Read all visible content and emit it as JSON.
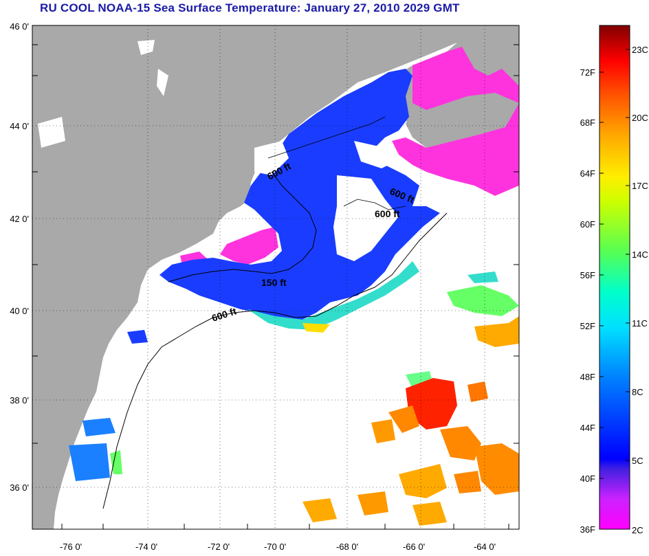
{
  "title": "RU COOL  NOAA-15  Sea Surface Temperature:  January 27, 2010 2029 GMT",
  "lat_labels": [
    "46 0'",
    "44 0'",
    "42 0'",
    "40 0'",
    "38 0'",
    "36 0'"
  ],
  "lon_labels": [
    "-76 0'",
    "-74 0'",
    "-72 0'",
    "-70 0'",
    "-68 0'",
    "-66 0'",
    "-64 0'"
  ],
  "contours": [
    "600 ft",
    "600 ft",
    "600 ft",
    "150 ft",
    "600 ft"
  ],
  "colorbar": {
    "fahrenheit": [
      "72F",
      "68F",
      "64F",
      "60F",
      "56F",
      "52F",
      "48F",
      "44F",
      "40F",
      "36F"
    ],
    "celsius": [
      "23C",
      "20C",
      "17C",
      "14C",
      "11C",
      "8C",
      "5C",
      "2C"
    ]
  },
  "colors": {
    "title": "#1a1aa6",
    "land": "#a9a9a9",
    "cold": "#ff33dd",
    "cool": "#1a3cff",
    "warm": "#ff6a00"
  }
}
